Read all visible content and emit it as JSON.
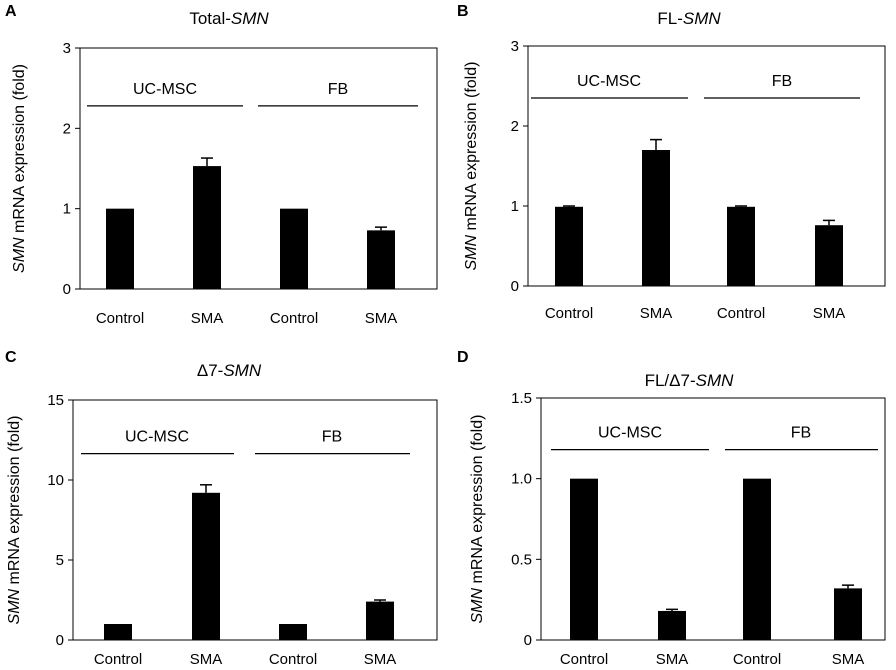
{
  "y_axis_label": {
    "gene": "SMN",
    "rest": " mRNA expression (fold)"
  },
  "group_labels": [
    "UC-MSC",
    "FB"
  ],
  "categories": [
    "Control",
    "SMA",
    "Control",
    "SMA"
  ],
  "chart_data": [
    {
      "panel": "A",
      "type": "bar",
      "title": {
        "prefix": "Total-",
        "gene": "SMN"
      },
      "categories": [
        "Control",
        "SMA",
        "Control",
        "SMA"
      ],
      "groups": [
        "UC-MSC",
        "UC-MSC",
        "FB",
        "FB"
      ],
      "values": [
        1.0,
        1.53,
        1.0,
        0.73
      ],
      "errors": [
        0,
        0.1,
        0,
        0.04
      ],
      "ylim": [
        0,
        3
      ],
      "yticks": [
        "0",
        "1",
        "2",
        "3"
      ],
      "ytick_values": [
        0,
        1,
        2,
        3
      ],
      "line_at": 2.28,
      "ylabel": "SMN mRNA expression (fold)"
    },
    {
      "panel": "B",
      "type": "bar",
      "title": {
        "prefix": "FL-",
        "gene": "SMN"
      },
      "categories": [
        "Control",
        "SMA",
        "Control",
        "SMA"
      ],
      "groups": [
        "UC-MSC",
        "UC-MSC",
        "FB",
        "FB"
      ],
      "values": [
        0.99,
        1.7,
        0.99,
        0.76
      ],
      "errors": [
        0.01,
        0.13,
        0.01,
        0.06
      ],
      "ylim": [
        0,
        3
      ],
      "yticks": [
        "0",
        "1",
        "2",
        "3"
      ],
      "ytick_values": [
        0,
        1,
        2,
        3
      ],
      "line_at": 2.35,
      "ylabel": "SMN mRNA expression (fold)"
    },
    {
      "panel": "C",
      "type": "bar",
      "title": {
        "prefix": "Δ7-",
        "gene": "SMN"
      },
      "categories": [
        "Control",
        "SMA",
        "Control",
        "SMA"
      ],
      "groups": [
        "UC-MSC",
        "UC-MSC",
        "FB",
        "FB"
      ],
      "values": [
        1.0,
        9.2,
        1.0,
        2.4
      ],
      "errors": [
        0,
        0.5,
        0,
        0.1
      ],
      "ylim": [
        0,
        15
      ],
      "yticks": [
        "0",
        "5",
        "10",
        "15"
      ],
      "ytick_values": [
        0,
        5,
        10,
        15
      ],
      "line_at": 11.65,
      "ylabel": "SMN mRNA expression (fold)"
    },
    {
      "panel": "D",
      "type": "bar",
      "title": {
        "prefix": "FL/Δ7-",
        "gene": "SMN"
      },
      "categories": [
        "Control",
        "SMA",
        "Control",
        "SMA"
      ],
      "groups": [
        "UC-MSC",
        "UC-MSC",
        "FB",
        "FB"
      ],
      "values": [
        1.0,
        0.18,
        1.0,
        0.32
      ],
      "errors": [
        0,
        0.01,
        0,
        0.02
      ],
      "ylim": [
        0,
        1.5
      ],
      "yticks": [
        "0",
        "0.5",
        "1.0",
        "1.5"
      ],
      "ytick_values": [
        0,
        0.5,
        1.0,
        1.5
      ],
      "line_at": 1.18,
      "ylabel": "SMN mRNA expression (fold)"
    }
  ]
}
